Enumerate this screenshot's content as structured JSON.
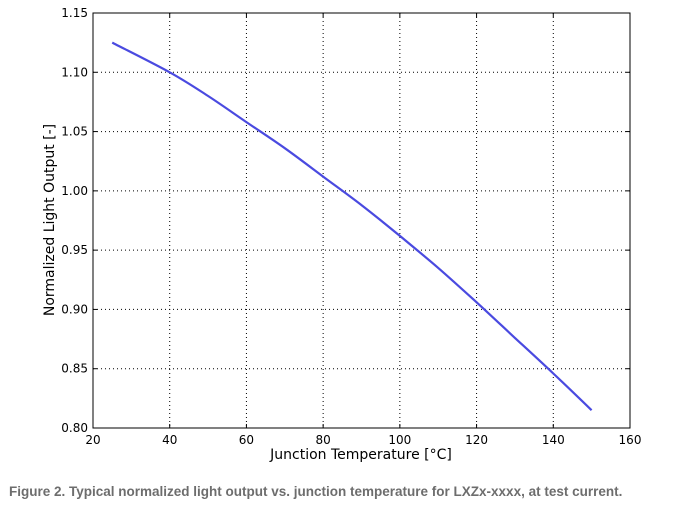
{
  "chart_data": {
    "type": "line",
    "title": "",
    "xlabel": "Junction Temperature [°C]",
    "ylabel": "Normalized Light Output [-]",
    "xlim": [
      20,
      160
    ],
    "ylim": [
      0.8,
      1.15
    ],
    "xticks": [
      "20",
      "40",
      "60",
      "80",
      "100",
      "120",
      "140",
      "160"
    ],
    "yticks": [
      "0.80",
      "0.85",
      "0.90",
      "0.95",
      "1.00",
      "1.05",
      "1.10",
      "1.15"
    ],
    "grid": true,
    "series": [
      {
        "name": "Normalized Light Output",
        "color": "#4a4ae0",
        "x": [
          25,
          40,
          50,
          60,
          70,
          80,
          90,
          100,
          110,
          120,
          130,
          140,
          150
        ],
        "y": [
          1.125,
          1.1,
          1.08,
          1.058,
          1.036,
          1.012,
          0.988,
          0.962,
          0.935,
          0.906,
          0.876,
          0.846,
          0.815
        ]
      }
    ]
  },
  "caption": "Figure 2. Typical normalized light output vs. junction temperature for LXZx-xxxx, at test current."
}
